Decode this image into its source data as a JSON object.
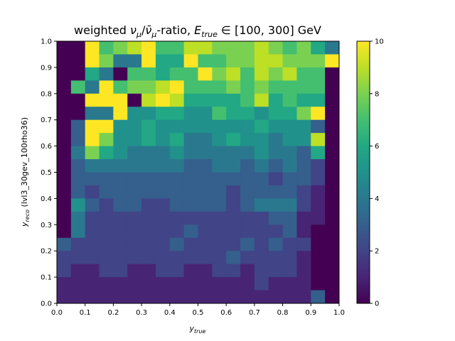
{
  "chart_data": {
    "type": "heatmap",
    "title": {
      "pre": "weighted ",
      "nu": "ν",
      "mu": "μ",
      "slash": "/",
      "nubar": "ν̄",
      "mu2": "μ",
      "mid": "-ratio, ",
      "E": "E",
      "Esub": "true",
      "range": " ∈ [100, 300] GeV"
    },
    "xlabel": {
      "main": "y",
      "sub": "true"
    },
    "ylabel": {
      "main": "y",
      "sub": "reco",
      "rest": " (lvl3_30gev_100rho36)"
    },
    "xlim": [
      0.0,
      1.0
    ],
    "ylim": [
      0.0,
      1.0
    ],
    "xticks": [
      "0.0",
      "0.1",
      "0.2",
      "0.3",
      "0.4",
      "0.5",
      "0.6",
      "0.7",
      "0.8",
      "0.9",
      "1.0"
    ],
    "yticks": [
      "0.0",
      "0.1",
      "0.2",
      "0.3",
      "0.4",
      "0.5",
      "0.6",
      "0.7",
      "0.8",
      "0.9",
      "1.0"
    ],
    "colorbar": {
      "min": 0,
      "max": 10,
      "ticks": [
        "0",
        "2",
        "4",
        "6",
        "8",
        "10"
      ],
      "colormap": "viridis"
    },
    "bins": {
      "nx": 20,
      "ny": 20,
      "x_edges": [
        0.0,
        1.0
      ],
      "y_edges": [
        0.0,
        1.0
      ]
    },
    "z_rows_top_to_bottom": [
      [
        0,
        0,
        10,
        7,
        8,
        9,
        10,
        7,
        7,
        9,
        9,
        8,
        8,
        8,
        9,
        8,
        7,
        8,
        6,
        4
      ],
      [
        0,
        0,
        10,
        8,
        4,
        4,
        10,
        6,
        6,
        10,
        7,
        7,
        8,
        8,
        9,
        9,
        8,
        8,
        8,
        10
      ],
      [
        0,
        0,
        6,
        4,
        0,
        7,
        7,
        6,
        7,
        7,
        10,
        8,
        9,
        7,
        9,
        8,
        9,
        7,
        7,
        0
      ],
      [
        0,
        7,
        4,
        10,
        7,
        8,
        8,
        9,
        10,
        7,
        7,
        7,
        8,
        7,
        8,
        7,
        7,
        7,
        7,
        0
      ],
      [
        0,
        0,
        10,
        10,
        10,
        0,
        9,
        10,
        9,
        6,
        6,
        6,
        6,
        7,
        9,
        6,
        7,
        6,
        6,
        0
      ],
      [
        0,
        0,
        4,
        4,
        10,
        5,
        5,
        6,
        6,
        5,
        5,
        7,
        6,
        6,
        5,
        6,
        6,
        8,
        10,
        0
      ],
      [
        0,
        3,
        10,
        10,
        5,
        5,
        6,
        5,
        5,
        5,
        5,
        5,
        5,
        5,
        6,
        5,
        5,
        5,
        3,
        0
      ],
      [
        0,
        3,
        10,
        8,
        5,
        5,
        6,
        5,
        6,
        4,
        4,
        5,
        6,
        5,
        5,
        4,
        5,
        5,
        9,
        0
      ],
      [
        0,
        4,
        8,
        6,
        5,
        4,
        4,
        4,
        5,
        4,
        4,
        4,
        4,
        4,
        5,
        4,
        4,
        3,
        6,
        0
      ],
      [
        0,
        3,
        4,
        4,
        4,
        4,
        4,
        4,
        4,
        3,
        3,
        4,
        4,
        3,
        4,
        3,
        4,
        3,
        2,
        0
      ],
      [
        0,
        3,
        3,
        3,
        3,
        3,
        3,
        3,
        3,
        3,
        3,
        3,
        3,
        3,
        3,
        2,
        3,
        3,
        2,
        0
      ],
      [
        0,
        3,
        2,
        3,
        3,
        3,
        3,
        3,
        3,
        3,
        3,
        3,
        2,
        3,
        3,
        3,
        3,
        2,
        1,
        0
      ],
      [
        0,
        5,
        3,
        2,
        3,
        3,
        2,
        2,
        3,
        3,
        3,
        3,
        2,
        3,
        4,
        4,
        4,
        2,
        1,
        0
      ],
      [
        0,
        4,
        2,
        2,
        2,
        2,
        2,
        2,
        2,
        2,
        2,
        2,
        2,
        2,
        2,
        3,
        3,
        1,
        1,
        0
      ],
      [
        0,
        4,
        2,
        2,
        2,
        2,
        2,
        2,
        2,
        3,
        2,
        2,
        2,
        2,
        2,
        2,
        3,
        1,
        0,
        0
      ],
      [
        3,
        2,
        2,
        2,
        2,
        2,
        2,
        2,
        3,
        2,
        2,
        2,
        2,
        3,
        2,
        3,
        2,
        2,
        0,
        0
      ],
      [
        2,
        2,
        2,
        2,
        2,
        2,
        2,
        2,
        2,
        2,
        2,
        2,
        3,
        2,
        2,
        2,
        2,
        1,
        0,
        0
      ],
      [
        2,
        1,
        1,
        2,
        2,
        1,
        1,
        2,
        2,
        1,
        1,
        2,
        2,
        1,
        2,
        2,
        2,
        1,
        0,
        0
      ],
      [
        1,
        1,
        1,
        1,
        1,
        1,
        1,
        1,
        1,
        1,
        1,
        1,
        1,
        1,
        2,
        1,
        1,
        1,
        0,
        0
      ],
      [
        1,
        1,
        1,
        1,
        1,
        1,
        1,
        1,
        1,
        1,
        1,
        1,
        1,
        1,
        1,
        1,
        1,
        1,
        3,
        0
      ]
    ]
  }
}
